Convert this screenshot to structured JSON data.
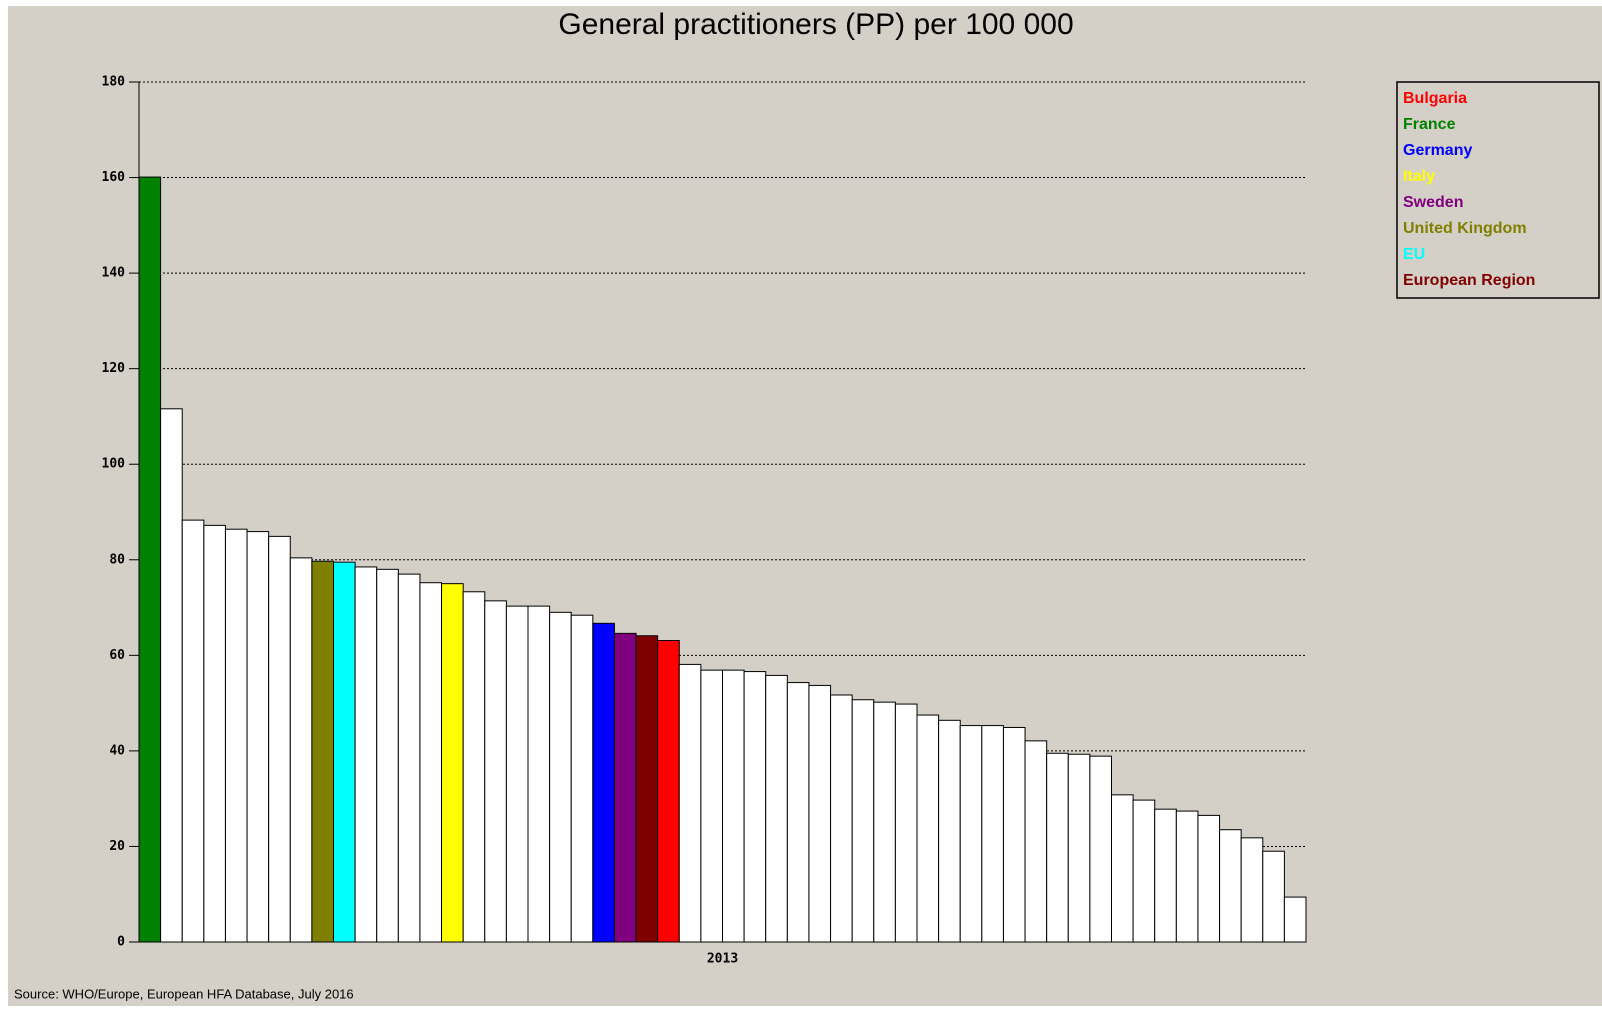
{
  "chart_data": {
    "type": "bar",
    "title": "General practitioners (PP) per 100 000",
    "x_label": "2013",
    "source": "Source: WHO/Europe, European HFA Database, July 2016",
    "categories": [
      null,
      null,
      null,
      null,
      null,
      null,
      null,
      null,
      null,
      null,
      null,
      null,
      null,
      null,
      null,
      null,
      null,
      null,
      null,
      null,
      null,
      null,
      null,
      null,
      null,
      null,
      null,
      null,
      null,
      null,
      null,
      null,
      null,
      null,
      null,
      null,
      null,
      null,
      null,
      null,
      null,
      null,
      null,
      null,
      null,
      null,
      null,
      null,
      null,
      null,
      null,
      null,
      null,
      null
    ],
    "values": [
      160.1,
      111.6,
      88.3,
      87.2,
      86.4,
      85.9,
      84.9,
      80.4,
      79.7,
      79.5,
      78.5,
      78.0,
      77.0,
      75.2,
      75.0,
      73.3,
      71.4,
      70.3,
      70.3,
      69.0,
      68.4,
      66.7,
      64.6,
      64.1,
      63.1,
      58.1,
      56.9,
      56.9,
      56.6,
      55.8,
      54.3,
      53.7,
      51.7,
      50.7,
      50.2,
      49.8,
      47.5,
      46.4,
      45.3,
      45.3,
      44.9,
      42.1,
      39.5,
      39.3,
      38.9,
      30.8,
      29.7,
      27.8,
      27.4,
      26.5,
      23.5,
      21.8,
      19.0,
      9.4
    ],
    "colors": [
      "#008000",
      "#ffffff",
      "#ffffff",
      "#ffffff",
      "#ffffff",
      "#ffffff",
      "#ffffff",
      "#ffffff",
      "#808000",
      "#00ffff",
      "#ffffff",
      "#ffffff",
      "#ffffff",
      "#ffffff",
      "#ffff00",
      "#ffffff",
      "#ffffff",
      "#ffffff",
      "#ffffff",
      "#ffffff",
      "#ffffff",
      "#0000ff",
      "#800080",
      "#800000",
      "#ff0000",
      "#ffffff",
      "#ffffff",
      "#ffffff",
      "#ffffff",
      "#ffffff",
      "#ffffff",
      "#ffffff",
      "#ffffff",
      "#ffffff",
      "#ffffff",
      "#ffffff",
      "#ffffff",
      "#ffffff",
      "#ffffff",
      "#ffffff",
      "#ffffff",
      "#ffffff",
      "#ffffff",
      "#ffffff",
      "#ffffff",
      "#ffffff",
      "#ffffff",
      "#ffffff",
      "#ffffff",
      "#ffffff",
      "#ffffff",
      "#ffffff",
      "#ffffff",
      "#ffffff"
    ],
    "legend": [
      {
        "name": "Bulgaria",
        "color": "#ff0000"
      },
      {
        "name": "France",
        "color": "#008000"
      },
      {
        "name": "Germany",
        "color": "#0000ff"
      },
      {
        "name": "Italy",
        "color": "#ffff00"
      },
      {
        "name": "Sweden",
        "color": "#800080"
      },
      {
        "name": "United Kingdom",
        "color": "#808000"
      },
      {
        "name": "EU",
        "color": "#00ffff"
      },
      {
        "name": "European Region",
        "color": "#800000"
      }
    ],
    "ylim": [
      0,
      180
    ],
    "yticks": [
      0,
      20,
      40,
      60,
      80,
      100,
      120,
      140,
      160,
      180
    ],
    "grid": true
  }
}
